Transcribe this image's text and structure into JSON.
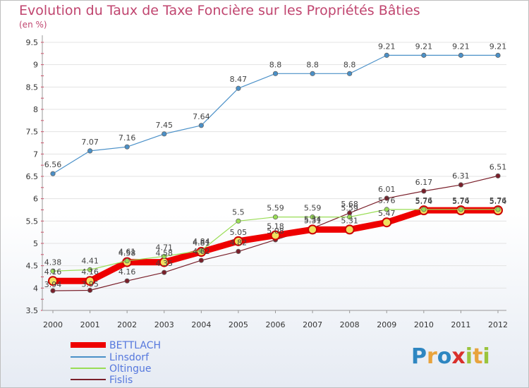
{
  "title": "Evolution du Taux de Taxe Foncière sur les Propriétés Bâties",
  "subtitle": "(en %)",
  "logo": {
    "text": "Proxiti",
    "colors": [
      "#2e86c1",
      "#e8a33d",
      "#2e86c1",
      "#d9302c",
      "#9ac43c",
      "#e8a33d",
      "#9ac43c"
    ]
  },
  "chart_data": {
    "type": "line",
    "title": "Evolution du Taux de Taxe Foncière sur les Propriétés Bâties",
    "ylabel": "(en %)",
    "xlabel": "",
    "ylim": [
      3.5,
      9.5
    ],
    "yticks": [
      3.5,
      4,
      4.5,
      5,
      5.5,
      6,
      6.5,
      7,
      7.5,
      8,
      8.5,
      9,
      9.5
    ],
    "ytick_labels": [
      "3.5",
      "4",
      "4.5",
      "5",
      "5.5",
      "6",
      "6.5",
      "7",
      "7.5",
      "8",
      "8.5",
      "9",
      "9.5"
    ],
    "categories": [
      "2000",
      "2001",
      "2002",
      "2003",
      "2004",
      "2005",
      "2006",
      "2007",
      "2008",
      "2009",
      "2010",
      "2011",
      "2012"
    ],
    "legend_position": "bottom-left",
    "series": [
      {
        "name": "BETTLACH",
        "color": "#ee0000",
        "values": [
          4.16,
          4.16,
          4.58,
          4.58,
          4.81,
          5.05,
          5.18,
          5.31,
          5.31,
          5.47,
          5.74,
          5.74,
          5.74
        ],
        "labels": [
          "4.16",
          "4.16",
          "4.58",
          "4.58",
          "4.81",
          "5.05",
          "5.18",
          "5.31",
          "5.31",
          "5.47",
          "5.74",
          "5.74",
          "5.74"
        ]
      },
      {
        "name": "Linsdorf",
        "color": "#4a90c8",
        "values": [
          6.56,
          7.07,
          7.16,
          7.45,
          7.64,
          8.47,
          8.8,
          8.8,
          8.8,
          9.21,
          9.21,
          9.21,
          9.21
        ],
        "labels": [
          "6.56",
          "7.07",
          "7.16",
          "7.45",
          "7.64",
          "8.47",
          "8.8",
          "8.8",
          "8.8",
          "9.21",
          "9.21",
          "9.21",
          "9.21"
        ]
      },
      {
        "name": "Oltingue",
        "color": "#99dd55",
        "values": [
          4.38,
          4.41,
          4.61,
          4.71,
          4.84,
          5.5,
          5.59,
          5.59,
          5.59,
          5.76,
          5.76,
          5.76,
          5.76
        ],
        "labels": [
          "4.38",
          "4.41",
          "4.61",
          "4.71",
          "4.84",
          "5.5",
          "5.59",
          "5.59",
          "5.59",
          "5.76",
          "5.76",
          "5.76",
          "5.76"
        ]
      },
      {
        "name": "Fislis",
        "color": "#7a1f2a",
        "values": [
          3.94,
          3.95,
          4.16,
          4.35,
          4.62,
          4.82,
          5.08,
          5.34,
          5.68,
          6.01,
          6.17,
          6.31,
          6.51
        ],
        "labels": [
          "3.94",
          "3.95",
          "4.16",
          "4.35",
          "4.62",
          "4.82",
          "5.08",
          "5.34",
          "5.68",
          "6.01",
          "6.17",
          "6.31",
          "6.51"
        ]
      }
    ]
  }
}
